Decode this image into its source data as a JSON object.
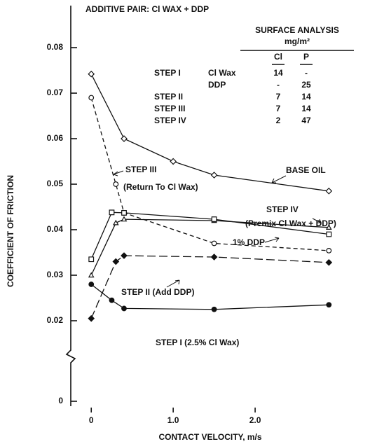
{
  "chart_data": {
    "type": "line",
    "title": "ADDITIVE PAIR: Cl WAX + DDP",
    "x_label": "CONTACT VELOCITY, m/s",
    "y_label": "COEFFICIENT OF FRICTION",
    "xlim": [
      -0.25,
      3.0
    ],
    "xticks": [
      0,
      {
        "value": 1.0,
        "label": "1.0"
      },
      {
        "value": 2.0,
        "label": "2.0"
      }
    ],
    "ylim": [
      0,
      0.085
    ],
    "ybreak": [
      0,
      0.02
    ],
    "yticks": [
      0,
      0.02,
      0.03,
      0.04,
      0.05,
      0.06,
      0.07,
      0.08
    ],
    "color": "#111111",
    "series": [
      {
        "name": "BASE OIL",
        "marker": "diamond",
        "filled": false,
        "dash": null,
        "x": [
          0,
          0.4,
          1.0,
          1.5,
          2.9
        ],
        "values": [
          0.0742,
          0.06,
          0.055,
          0.052,
          0.0485
        ]
      },
      {
        "name": "STEP III",
        "marker": "circle",
        "filled": false,
        "dash": "6 4",
        "x": [
          0,
          0.3,
          0.4,
          1.5,
          2.9
        ],
        "values": [
          0.069,
          0.05,
          0.0437,
          0.037,
          0.0354
        ]
      },
      {
        "name": "STEP IV",
        "marker": "triangle",
        "filled": false,
        "dash": null,
        "x": [
          0,
          0.3,
          0.4,
          1.5,
          2.9
        ],
        "values": [
          0.03,
          0.0415,
          0.0423,
          0.042,
          0.0405
        ]
      },
      {
        "name": "1% DDP",
        "marker": "square",
        "filled": false,
        "dash": null,
        "x": [
          0,
          0.25,
          0.4,
          1.5,
          2.9
        ],
        "values": [
          0.0335,
          0.0438,
          0.0437,
          0.0423,
          0.039
        ]
      },
      {
        "name": "STEP II (Add DDP)",
        "marker": "diamond",
        "filled": true,
        "dash": "12 5",
        "x": [
          0,
          0.3,
          0.4,
          1.5,
          2.9
        ],
        "values": [
          0.0205,
          0.033,
          0.0343,
          0.034,
          0.0328
        ]
      },
      {
        "name": "STEP I (2.5% Cl Wax)",
        "marker": "circle",
        "filled": true,
        "dash": null,
        "x": [
          0,
          0.25,
          0.4,
          1.5,
          2.9
        ],
        "values": [
          0.028,
          0.0245,
          0.0227,
          0.0225,
          0.0235
        ]
      }
    ],
    "annotations": [
      "(Return To Cl Wax)",
      "(Premix Cl Wax + DDP)"
    ],
    "inset_table": {
      "title": "SURFACE ANALYSIS",
      "unit": "mg/m²",
      "columns": [
        "Cl",
        "P"
      ],
      "rows": [
        [
          "STEP I",
          "Cl Wax",
          "14",
          "-"
        ],
        [
          null,
          "DDP",
          "-",
          "25"
        ],
        [
          "STEP II",
          null,
          "7",
          "14"
        ],
        [
          "STEP III",
          null,
          "7",
          "14"
        ],
        [
          "STEP IV",
          null,
          "2",
          "47"
        ]
      ]
    }
  }
}
